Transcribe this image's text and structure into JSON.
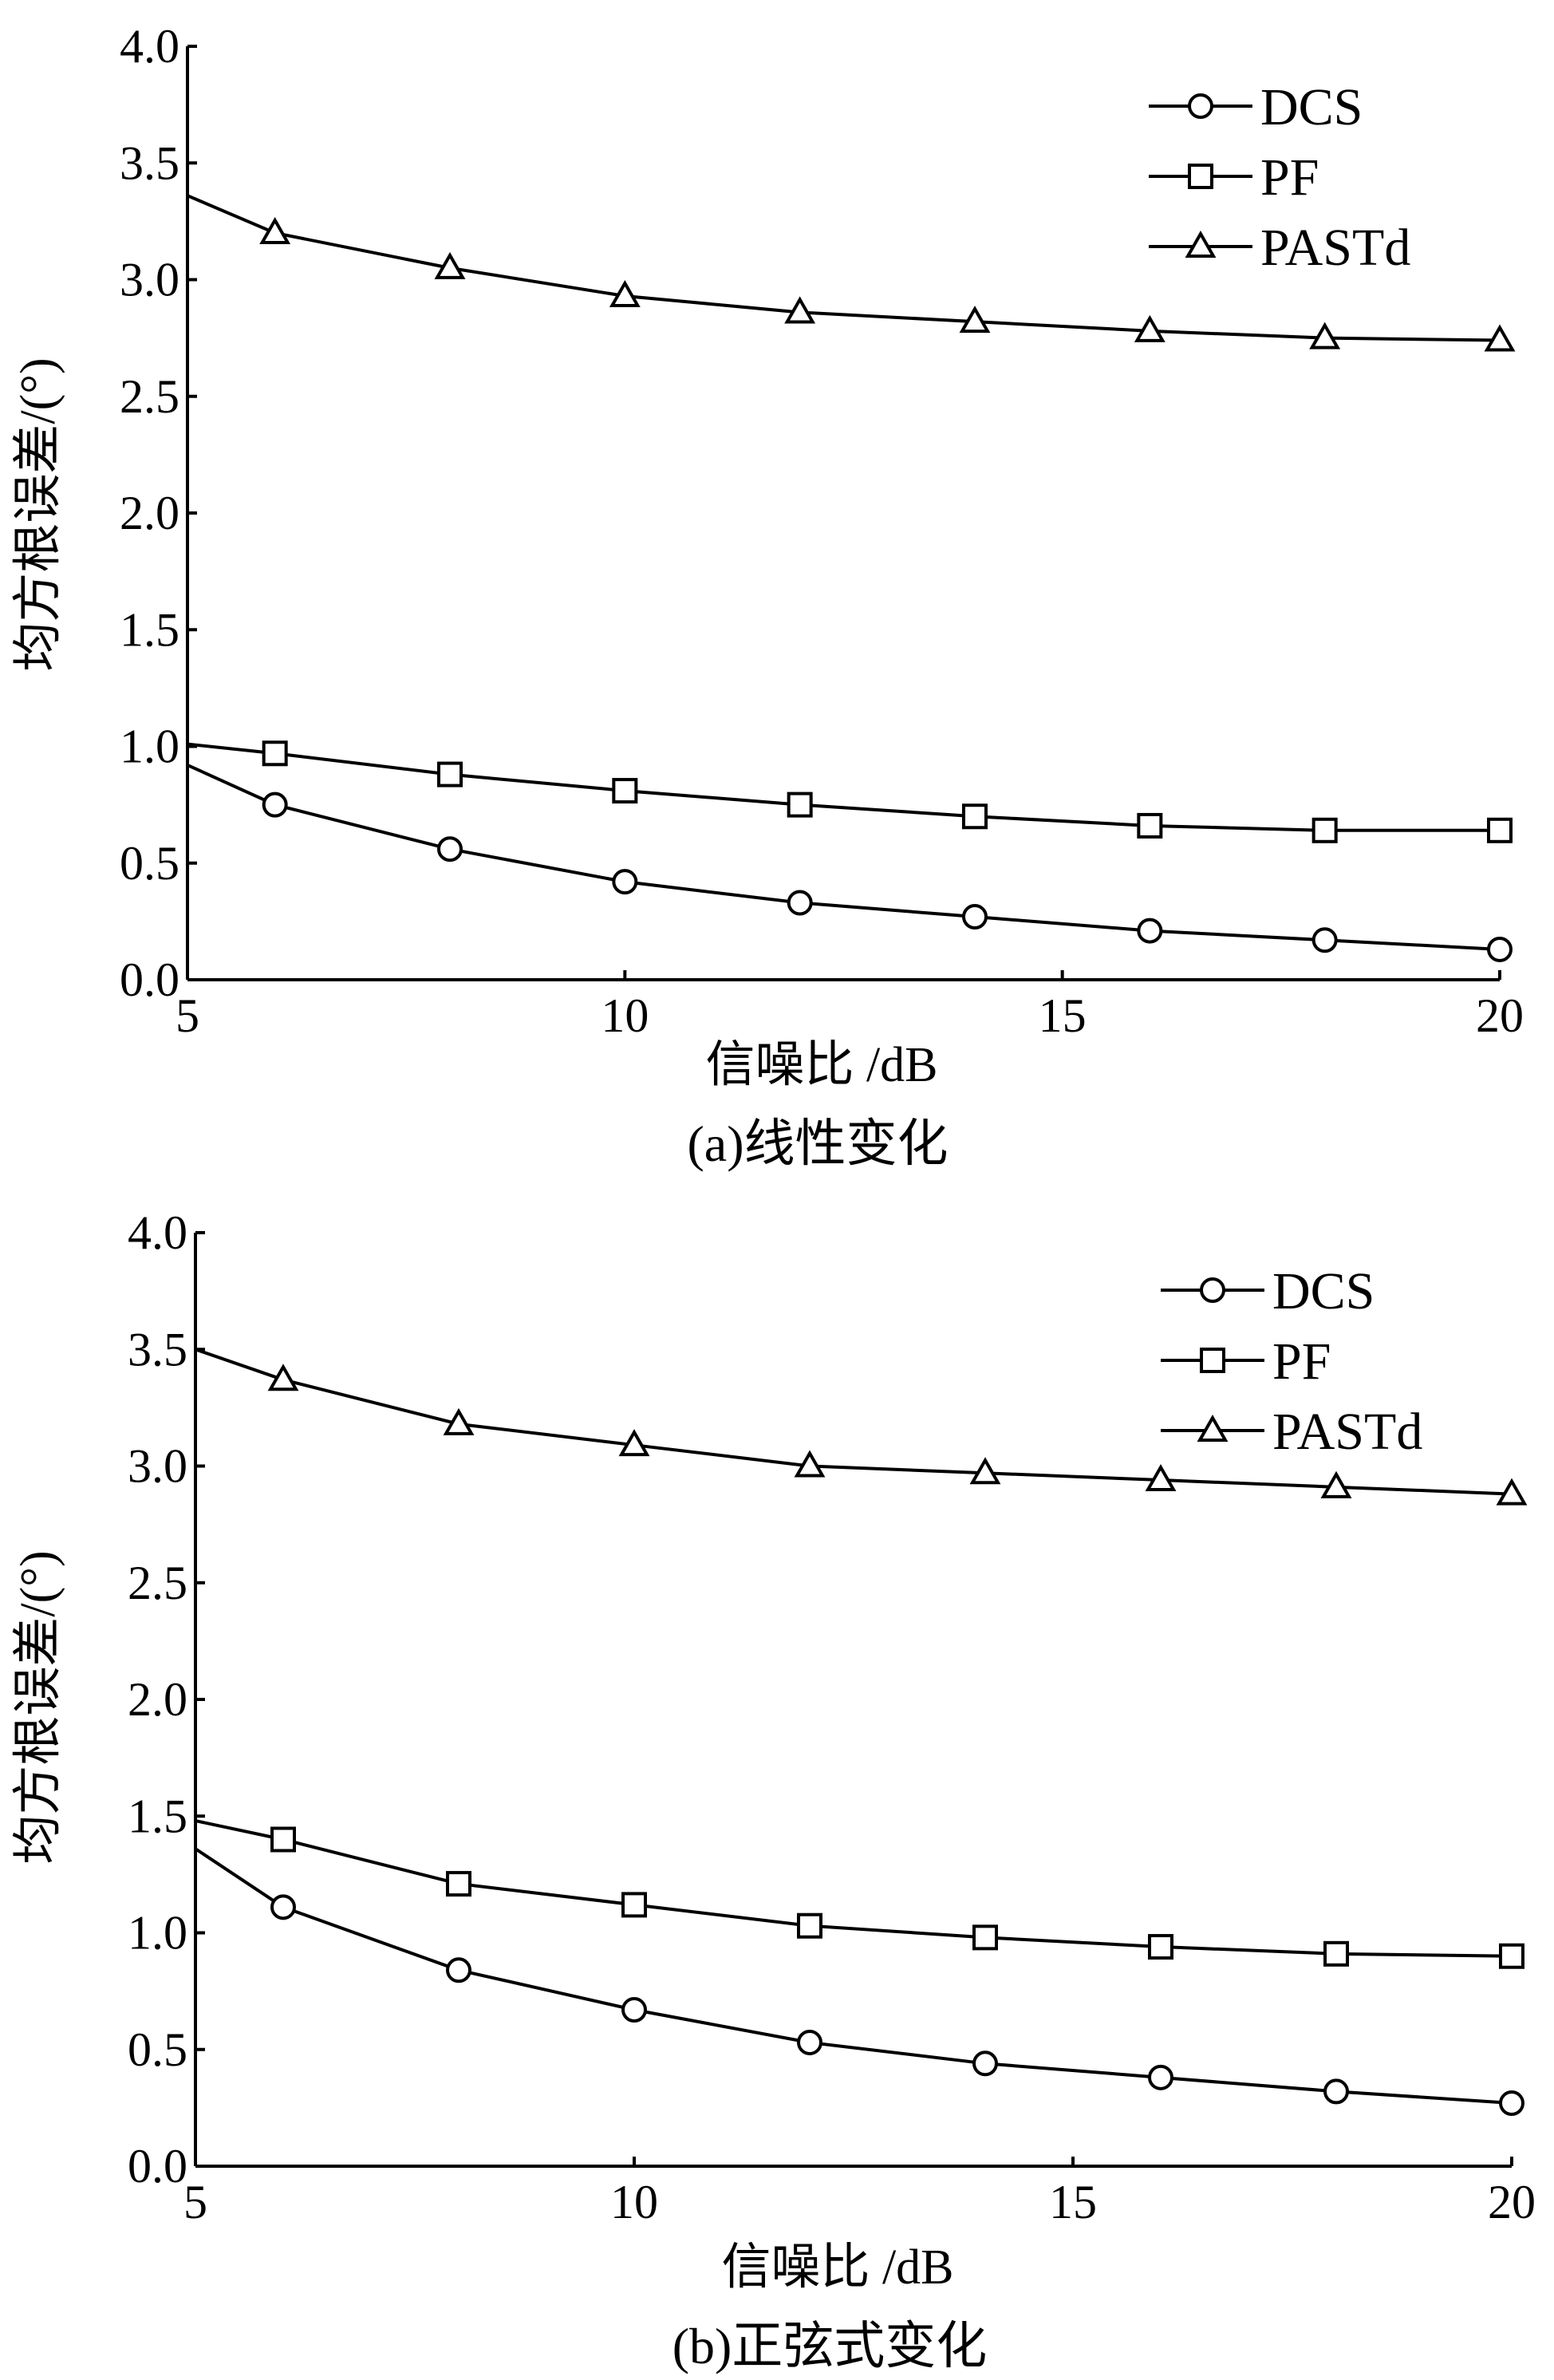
{
  "chart_data": [
    {
      "type": "line",
      "caption": "(a)线性变化",
      "xlabel": "信噪比 /dB",
      "ylabel": "均方根误差/(°)",
      "xlim": [
        5,
        20
      ],
      "ylim": [
        0.0,
        4.0
      ],
      "xticks": [
        "5",
        "10",
        "15",
        "20"
      ],
      "yticks": [
        "0.0",
        "0.5",
        "1.0",
        "1.5",
        "2.0",
        "2.5",
        "3.0",
        "3.5",
        "4.0"
      ],
      "legend_position": "top-right",
      "series": [
        {
          "name": "DCS",
          "marker": "circle",
          "x": [
            5,
            6,
            8,
            10,
            12,
            14,
            16,
            18,
            20
          ],
          "values": [
            0.92,
            0.75,
            0.56,
            0.42,
            0.33,
            0.27,
            0.21,
            0.17,
            0.13
          ]
        },
        {
          "name": "PF",
          "marker": "square",
          "x": [
            5,
            6,
            8,
            10,
            12,
            14,
            16,
            18,
            20
          ],
          "values": [
            1.01,
            0.97,
            0.88,
            0.81,
            0.75,
            0.7,
            0.66,
            0.64,
            0.64
          ]
        },
        {
          "name": "PASTd",
          "marker": "triangle",
          "x": [
            5,
            6,
            8,
            10,
            12,
            14,
            16,
            18,
            20
          ],
          "values": [
            3.36,
            3.2,
            3.05,
            2.93,
            2.86,
            2.82,
            2.78,
            2.75,
            2.74
          ]
        }
      ]
    },
    {
      "type": "line",
      "caption": "(b)正弦式变化",
      "xlabel": "信噪比 /dB",
      "ylabel": "均方根误差/(°)",
      "xlim": [
        5,
        20
      ],
      "ylim": [
        0.0,
        4.0
      ],
      "xticks": [
        "5",
        "10",
        "15",
        "20"
      ],
      "yticks": [
        "0.0",
        "0.5",
        "1.0",
        "1.5",
        "2.0",
        "2.5",
        "3.0",
        "3.5",
        "4.0"
      ],
      "legend_position": "top-right",
      "series": [
        {
          "name": "DCS",
          "marker": "circle",
          "x": [
            5,
            6,
            8,
            10,
            12,
            14,
            16,
            18,
            20
          ],
          "values": [
            1.36,
            1.11,
            0.84,
            0.67,
            0.53,
            0.44,
            0.38,
            0.32,
            0.27
          ]
        },
        {
          "name": "PF",
          "marker": "square",
          "x": [
            5,
            6,
            8,
            10,
            12,
            14,
            16,
            18,
            20
          ],
          "values": [
            1.48,
            1.4,
            1.21,
            1.12,
            1.03,
            0.98,
            0.94,
            0.91,
            0.9
          ]
        },
        {
          "name": "PASTd",
          "marker": "triangle",
          "x": [
            5,
            6,
            8,
            10,
            12,
            14,
            16,
            18,
            20
          ],
          "values": [
            3.5,
            3.37,
            3.18,
            3.09,
            3.0,
            2.97,
            2.94,
            2.91,
            2.88
          ]
        }
      ]
    }
  ]
}
